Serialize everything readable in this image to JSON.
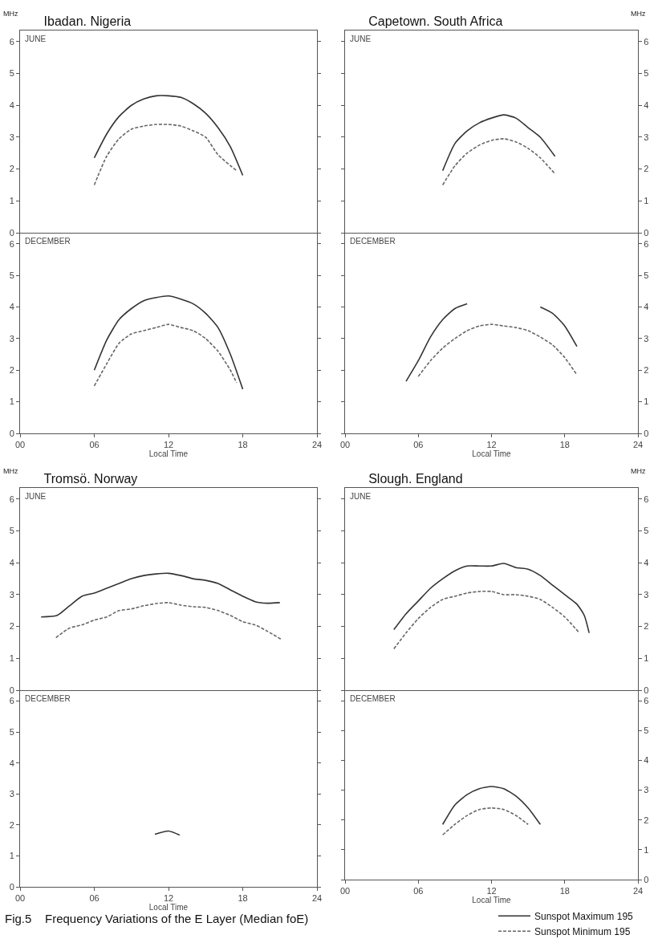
{
  "chart_data": [
    {
      "type": "line",
      "title": "Ibadan. Nigeria",
      "ylabel": "MHz",
      "annotations": [
        "JUNE"
      ],
      "tick_labels": "y",
      "xlim": [
        0,
        24
      ],
      "ylim": [
        0,
        6.35
      ],
      "yticks": [
        0,
        1,
        2,
        3,
        4,
        5,
        6
      ],
      "series": [
        {
          "color": "#333333",
          "line_style": "solid",
          "x": [
            6,
            7,
            8,
            9,
            10,
            11,
            12,
            13,
            14,
            15,
            16,
            17,
            18
          ],
          "values": [
            2.35,
            3.1,
            3.65,
            4.0,
            4.2,
            4.3,
            4.3,
            4.25,
            4.05,
            3.75,
            3.3,
            2.7,
            1.8
          ]
        },
        {
          "color": "#666666",
          "line_style": "dashed",
          "x": [
            6,
            7,
            8,
            9,
            10,
            11,
            12,
            13,
            14,
            15,
            16,
            17.5
          ],
          "values": [
            1.5,
            2.4,
            2.95,
            3.25,
            3.35,
            3.4,
            3.4,
            3.35,
            3.2,
            3.0,
            2.45,
            1.95
          ]
        }
      ]
    },
    {
      "type": "line",
      "title": "Capetown. South Africa",
      "y2label": "MHz",
      "annotations": [
        "JUNE"
      ],
      "tick_labels": "y",
      "xlim": [
        0,
        24
      ],
      "y2lim": [
        0,
        6.35
      ],
      "y2ticks": [
        0,
        1,
        2,
        3,
        4,
        5,
        6
      ],
      "series": [
        {
          "color": "#333333",
          "line_style": "solid",
          "axis": "y2",
          "x": [
            8,
            9,
            10,
            11,
            12,
            13,
            14,
            15,
            16,
            17.2
          ],
          "values": [
            1.95,
            2.8,
            3.2,
            3.45,
            3.6,
            3.7,
            3.6,
            3.3,
            3.0,
            2.4
          ]
        },
        {
          "color": "#666666",
          "line_style": "dashed",
          "axis": "y2",
          "x": [
            8,
            9,
            10,
            11,
            12,
            13,
            14,
            15,
            16,
            17.2
          ],
          "values": [
            1.5,
            2.1,
            2.5,
            2.75,
            2.9,
            2.95,
            2.85,
            2.65,
            2.35,
            1.85
          ]
        }
      ]
    },
    {
      "type": "line",
      "xlabel": "Local Time",
      "annotations": [
        "DECEMBER"
      ],
      "xlim": [
        0,
        24
      ],
      "xticks": [
        {
          "value": 0,
          "label": "00"
        },
        {
          "value": 6,
          "label": "06"
        },
        {
          "value": 12,
          "label": "12"
        },
        {
          "value": 18,
          "label": "18"
        },
        {
          "value": 24,
          "label": "24"
        }
      ],
      "ylim": [
        0,
        6.35
      ],
      "yticks": [
        0,
        1,
        2,
        3,
        4,
        5,
        6
      ],
      "series": [
        {
          "color": "#333333",
          "line_style": "solid",
          "x": [
            6,
            7,
            8,
            9,
            10,
            11,
            12,
            13,
            14,
            15,
            16,
            17,
            18
          ],
          "values": [
            2.0,
            2.95,
            3.6,
            3.95,
            4.2,
            4.3,
            4.35,
            4.25,
            4.1,
            3.8,
            3.35,
            2.5,
            1.4
          ]
        },
        {
          "color": "#666666",
          "line_style": "dashed",
          "x": [
            6,
            7,
            8,
            9,
            10,
            11,
            12,
            13,
            14,
            15,
            16,
            17,
            17.5
          ],
          "values": [
            1.5,
            2.2,
            2.85,
            3.15,
            3.25,
            3.35,
            3.45,
            3.35,
            3.25,
            3.0,
            2.6,
            2.0,
            1.6
          ]
        }
      ]
    },
    {
      "type": "line",
      "xlabel": "Local Time",
      "annotations": [
        "DECEMBER"
      ],
      "xlim": [
        0,
        24
      ],
      "xticks": [
        {
          "value": 0,
          "label": "00"
        },
        {
          "value": 6,
          "label": "06"
        },
        {
          "value": 12,
          "label": "12"
        },
        {
          "value": 18,
          "label": "18"
        },
        {
          "value": 24,
          "label": "24"
        }
      ],
      "y2lim": [
        0,
        6.35
      ],
      "y2ticks": [
        0,
        1,
        2,
        3,
        4,
        5,
        6
      ],
      "series": [
        {
          "color": "#333333",
          "line_style": "solid",
          "axis": "y2",
          "x": [
            5,
            6,
            7,
            8,
            9,
            10,
            11,
            16,
            17,
            18,
            19
          ],
          "values": [
            1.65,
            2.3,
            3.05,
            3.6,
            3.95,
            4.1,
            null,
            4.0,
            3.8,
            3.4,
            2.75
          ]
        },
        {
          "color": "#666666",
          "line_style": "dashed",
          "axis": "y2",
          "x": [
            6,
            7,
            8,
            9,
            10,
            11,
            12,
            13,
            14,
            15,
            16,
            17,
            18,
            19
          ],
          "values": [
            1.8,
            2.3,
            2.7,
            3.0,
            3.25,
            3.4,
            3.45,
            3.4,
            3.35,
            3.25,
            3.05,
            2.8,
            2.4,
            1.85
          ]
        }
      ]
    },
    {
      "type": "line",
      "title": "Tromsö. Norway",
      "ylabel": "MHz",
      "annotations": [
        "JUNE"
      ],
      "tick_labels": "y",
      "xlim": [
        0,
        24
      ],
      "ylim": [
        0,
        6.35
      ],
      "yticks": [
        0,
        1,
        2,
        3,
        4,
        5,
        6
      ],
      "series": [
        {
          "color": "#333333",
          "line_style": "solid",
          "x": [
            1.7,
            3,
            4,
            5,
            6,
            7,
            8,
            9,
            10,
            11,
            12,
            13,
            14,
            15,
            16,
            17,
            18,
            19,
            20,
            21
          ],
          "values": [
            2.3,
            2.35,
            2.65,
            2.95,
            3.05,
            3.2,
            3.35,
            3.5,
            3.6,
            3.65,
            3.67,
            3.6,
            3.5,
            3.45,
            3.35,
            3.15,
            2.95,
            2.78,
            2.73,
            2.75
          ]
        },
        {
          "color": "#666666",
          "line_style": "dashed",
          "x": [
            2.9,
            4,
            5,
            6,
            7,
            8,
            9,
            10,
            11,
            12,
            13,
            14,
            15,
            16,
            17,
            18,
            19,
            20,
            21.1
          ],
          "values": [
            1.65,
            1.95,
            2.05,
            2.2,
            2.3,
            2.5,
            2.55,
            2.65,
            2.72,
            2.75,
            2.67,
            2.62,
            2.6,
            2.5,
            2.35,
            2.15,
            2.05,
            1.85,
            1.6
          ]
        }
      ]
    },
    {
      "type": "line",
      "title": "Slough. England",
      "y2label": "MHz",
      "annotations": [
        "JUNE"
      ],
      "tick_labels": "y",
      "xlim": [
        0,
        24
      ],
      "y2lim": [
        0,
        6.35
      ],
      "y2ticks": [
        0,
        1,
        2,
        3,
        4,
        5,
        6
      ],
      "series": [
        {
          "color": "#333333",
          "line_style": "solid",
          "axis": "y2",
          "x": [
            4,
            5,
            6,
            7,
            8,
            9,
            10,
            11,
            12,
            13,
            14,
            15,
            16,
            17,
            18,
            19,
            19.6,
            20
          ],
          "values": [
            1.9,
            2.4,
            2.8,
            3.2,
            3.5,
            3.75,
            3.9,
            3.9,
            3.9,
            3.98,
            3.85,
            3.8,
            3.6,
            3.3,
            3.0,
            2.7,
            2.35,
            1.8
          ]
        },
        {
          "color": "#666666",
          "line_style": "dashed",
          "axis": "y2",
          "x": [
            4,
            5,
            6,
            7,
            8,
            9,
            10,
            11,
            12,
            13,
            14,
            15,
            16,
            17,
            18,
            19.2
          ],
          "values": [
            1.3,
            1.8,
            2.25,
            2.6,
            2.85,
            2.95,
            3.05,
            3.1,
            3.1,
            3.0,
            3.0,
            2.95,
            2.85,
            2.6,
            2.3,
            1.8
          ]
        }
      ]
    },
    {
      "type": "line",
      "xlabel": "Local Time",
      "annotations": [
        "DECEMBER"
      ],
      "xlim": [
        0,
        24
      ],
      "xticks": [
        {
          "value": 0,
          "label": "00"
        },
        {
          "value": 6,
          "label": "06"
        },
        {
          "value": 12,
          "label": "12"
        },
        {
          "value": 18,
          "label": "18"
        },
        {
          "value": 24,
          "label": "24"
        }
      ],
      "ylim": [
        0,
        6.35
      ],
      "yticks": [
        0,
        1,
        2,
        3,
        4,
        5,
        6
      ],
      "series": [
        {
          "color": "#333333",
          "line_style": "solid",
          "x": [
            10.9,
            12,
            12.9
          ],
          "values": [
            1.7,
            1.8,
            1.67
          ]
        }
      ]
    },
    {
      "type": "line",
      "xlabel": "Local Time",
      "annotations": [
        "DECEMBER",
        "Fig.5    Frequency Variations of the E Layer (Median foE)"
      ],
      "legend": "bottom right",
      "xlim": [
        0,
        24
      ],
      "xticks": [
        {
          "value": 0,
          "label": "00"
        },
        {
          "value": 6,
          "label": "06"
        },
        {
          "value": 12,
          "label": "12"
        },
        {
          "value": 18,
          "label": "18"
        },
        {
          "value": 24,
          "label": "24"
        }
      ],
      "y2lim": [
        0,
        6.35
      ],
      "y2ticks": [
        0,
        1,
        2,
        3,
        4,
        5,
        6
      ],
      "series": [
        {
          "name": "Sunspot Maximum 195",
          "color": "#333333",
          "line_style": "solid",
          "axis": "y2",
          "x": [
            8,
            9,
            10,
            11,
            12,
            13,
            14,
            15,
            16
          ],
          "values": [
            1.85,
            2.5,
            2.85,
            3.05,
            3.12,
            3.05,
            2.8,
            2.4,
            1.85
          ]
        },
        {
          "name": "Sunspot Minimum 195",
          "color": "#666666",
          "line_style": "dashed",
          "axis": "y2",
          "x": [
            8,
            9,
            10,
            11,
            12,
            13,
            14,
            15
          ],
          "values": [
            1.5,
            1.85,
            2.15,
            2.35,
            2.4,
            2.35,
            2.15,
            1.85
          ]
        }
      ]
    }
  ]
}
